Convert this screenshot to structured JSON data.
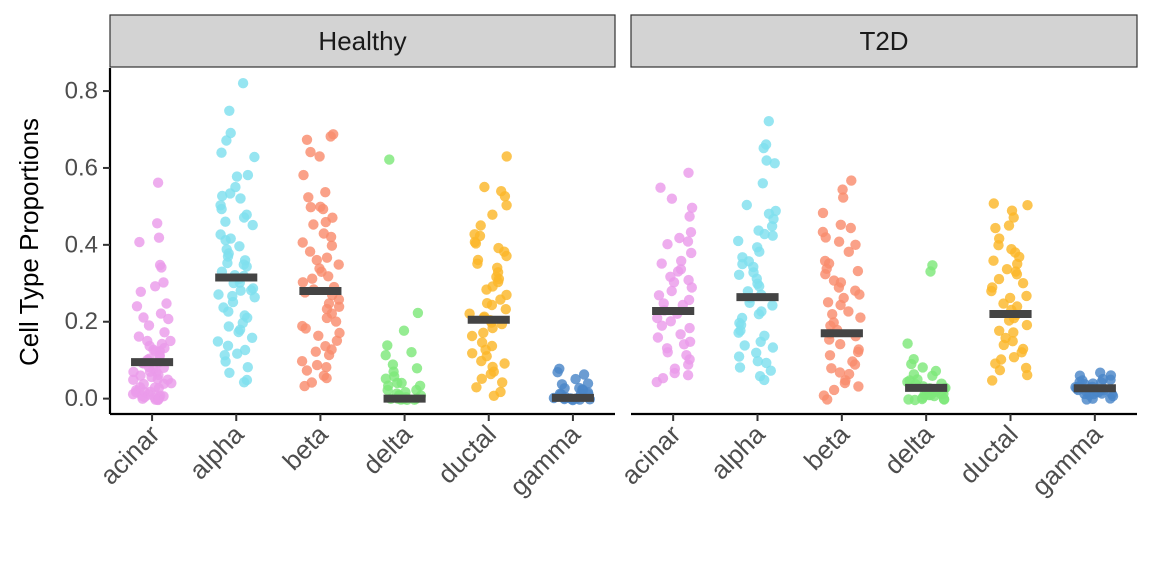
{
  "chart_data": {
    "type": "scatter",
    "subtype": "faceted jitter strip plot with median bars",
    "ylabel": "Cell Type Proportions",
    "xlabel": "",
    "ylim": [
      -0.04,
      0.86
    ],
    "yticks": [
      0.0,
      0.2,
      0.4,
      0.6,
      0.8
    ],
    "ytick_labels": [
      "0.0",
      "0.2",
      "0.4",
      "0.6",
      "0.8"
    ],
    "categories": [
      "acinar",
      "alpha",
      "beta",
      "delta",
      "ductal",
      "gamma"
    ],
    "colors": {
      "acinar": "#ea9bea",
      "alpha": "#7fdfee",
      "beta": "#f98c6e",
      "delta": "#7ee87a",
      "ductal": "#fbb72a",
      "gamma": "#4a86c8"
    },
    "median_color": "#444444",
    "grid": false,
    "legend": "none",
    "facets": [
      {
        "label": "Healthy",
        "groups": [
          {
            "category": "acinar",
            "median": 0.095,
            "points": [
              0.56,
              0.46,
              0.42,
              0.41,
              0.35,
              0.34,
              0.3,
              0.29,
              0.28,
              0.25,
              0.24,
              0.22,
              0.21,
              0.21,
              0.19,
              0.17,
              0.16,
              0.15,
              0.15,
              0.14,
              0.14,
              0.13,
              0.13,
              0.12,
              0.12,
              0.11,
              0.11,
              0.1,
              0.1,
              0.1,
              0.09,
              0.09,
              0.09,
              0.08,
              0.08,
              0.08,
              0.07,
              0.07,
              0.07,
              0.06,
              0.06,
              0.06,
              0.05,
              0.05,
              0.05,
              0.04,
              0.04,
              0.04,
              0.03,
              0.03,
              0.03,
              0.02,
              0.02,
              0.02,
              0.02,
              0.01,
              0.01,
              0.01,
              0.01,
              0.01,
              0.0,
              0.0,
              0.0,
              0.0,
              0.0,
              0.0,
              0.0,
              0.0
            ]
          },
          {
            "category": "alpha",
            "median": 0.315,
            "points": [
              0.82,
              0.75,
              0.69,
              0.67,
              0.64,
              0.63,
              0.58,
              0.58,
              0.55,
              0.53,
              0.53,
              0.52,
              0.5,
              0.49,
              0.48,
              0.47,
              0.46,
              0.45,
              0.43,
              0.42,
              0.41,
              0.4,
              0.39,
              0.38,
              0.37,
              0.36,
              0.35,
              0.35,
              0.34,
              0.33,
              0.32,
              0.32,
              0.31,
              0.3,
              0.3,
              0.29,
              0.28,
              0.28,
              0.27,
              0.27,
              0.26,
              0.25,
              0.24,
              0.23,
              0.22,
              0.21,
              0.2,
              0.19,
              0.18,
              0.17,
              0.16,
              0.15,
              0.14,
              0.13,
              0.12,
              0.11,
              0.1,
              0.08,
              0.07,
              0.05,
              0.04
            ]
          },
          {
            "category": "beta",
            "median": 0.28,
            "points": [
              0.69,
              0.68,
              0.67,
              0.64,
              0.63,
              0.58,
              0.54,
              0.52,
              0.5,
              0.5,
              0.49,
              0.47,
              0.46,
              0.45,
              0.43,
              0.42,
              0.41,
              0.4,
              0.38,
              0.37,
              0.36,
              0.35,
              0.34,
              0.33,
              0.32,
              0.31,
              0.3,
              0.29,
              0.28,
              0.28,
              0.27,
              0.26,
              0.25,
              0.24,
              0.23,
              0.22,
              0.21,
              0.2,
              0.19,
              0.18,
              0.17,
              0.16,
              0.15,
              0.14,
              0.13,
              0.12,
              0.11,
              0.1,
              0.09,
              0.08,
              0.07,
              0.06,
              0.05,
              0.04,
              0.03
            ]
          },
          {
            "category": "delta",
            "median": 0.0,
            "points": [
              0.62,
              0.22,
              0.18,
              0.14,
              0.12,
              0.11,
              0.09,
              0.08,
              0.07,
              0.06,
              0.05,
              0.04,
              0.04,
              0.03,
              0.03,
              0.02,
              0.02,
              0.02,
              0.01,
              0.01,
              0.01,
              0.01,
              0.0,
              0.0,
              0.0,
              0.0,
              0.0,
              0.0,
              0.0,
              0.0,
              0.0,
              0.0
            ]
          },
          {
            "category": "ductal",
            "median": 0.205,
            "points": [
              0.63,
              0.55,
              0.54,
              0.53,
              0.5,
              0.48,
              0.45,
              0.43,
              0.42,
              0.41,
              0.4,
              0.39,
              0.38,
              0.37,
              0.36,
              0.35,
              0.34,
              0.33,
              0.32,
              0.31,
              0.3,
              0.29,
              0.28,
              0.27,
              0.26,
              0.25,
              0.24,
              0.23,
              0.22,
              0.21,
              0.21,
              0.2,
              0.2,
              0.19,
              0.18,
              0.17,
              0.16,
              0.15,
              0.14,
              0.13,
              0.12,
              0.11,
              0.1,
              0.09,
              0.08,
              0.07,
              0.06,
              0.05,
              0.04,
              0.03,
              0.02,
              0.01
            ]
          },
          {
            "category": "gamma",
            "median": 0.002,
            "points": [
              0.08,
              0.07,
              0.06,
              0.05,
              0.04,
              0.04,
              0.03,
              0.03,
              0.02,
              0.02,
              0.02,
              0.01,
              0.01,
              0.01,
              0.01,
              0.0,
              0.0,
              0.0,
              0.0,
              0.0,
              0.0,
              0.0,
              0.0,
              0.0,
              0.0
            ]
          }
        ]
      },
      {
        "label": "T2D",
        "groups": [
          {
            "category": "acinar",
            "median": 0.228,
            "points": [
              0.59,
              0.55,
              0.52,
              0.5,
              0.47,
              0.43,
              0.42,
              0.41,
              0.4,
              0.38,
              0.36,
              0.35,
              0.34,
              0.33,
              0.32,
              0.31,
              0.3,
              0.29,
              0.28,
              0.27,
              0.26,
              0.25,
              0.24,
              0.23,
              0.22,
              0.21,
              0.2,
              0.19,
              0.18,
              0.17,
              0.16,
              0.15,
              0.14,
              0.13,
              0.12,
              0.11,
              0.1,
              0.09,
              0.08,
              0.07,
              0.06,
              0.05,
              0.04
            ]
          },
          {
            "category": "alpha",
            "median": 0.264,
            "points": [
              0.72,
              0.66,
              0.65,
              0.62,
              0.61,
              0.56,
              0.5,
              0.49,
              0.48,
              0.47,
              0.45,
              0.44,
              0.43,
              0.42,
              0.41,
              0.39,
              0.38,
              0.37,
              0.36,
              0.35,
              0.34,
              0.33,
              0.32,
              0.31,
              0.3,
              0.29,
              0.28,
              0.27,
              0.26,
              0.25,
              0.24,
              0.23,
              0.22,
              0.21,
              0.2,
              0.19,
              0.18,
              0.17,
              0.16,
              0.15,
              0.14,
              0.13,
              0.12,
              0.11,
              0.1,
              0.09,
              0.08,
              0.07,
              0.06,
              0.05
            ]
          },
          {
            "category": "beta",
            "median": 0.17,
            "points": [
              0.57,
              0.54,
              0.52,
              0.48,
              0.45,
              0.44,
              0.43,
              0.42,
              0.41,
              0.4,
              0.38,
              0.36,
              0.35,
              0.34,
              0.33,
              0.32,
              0.31,
              0.3,
              0.29,
              0.28,
              0.27,
              0.26,
              0.25,
              0.24,
              0.23,
              0.22,
              0.21,
              0.2,
              0.19,
              0.18,
              0.17,
              0.16,
              0.15,
              0.14,
              0.13,
              0.12,
              0.11,
              0.1,
              0.09,
              0.08,
              0.07,
              0.06,
              0.05,
              0.04,
              0.03,
              0.02,
              0.01,
              0.0
            ]
          },
          {
            "category": "delta",
            "median": 0.028,
            "points": [
              0.35,
              0.33,
              0.14,
              0.1,
              0.09,
              0.08,
              0.07,
              0.06,
              0.06,
              0.05,
              0.05,
              0.04,
              0.04,
              0.04,
              0.03,
              0.03,
              0.03,
              0.03,
              0.02,
              0.02,
              0.02,
              0.02,
              0.02,
              0.01,
              0.01,
              0.01,
              0.01,
              0.01,
              0.01,
              0.0,
              0.0,
              0.0,
              0.0,
              0.0,
              0.0
            ]
          },
          {
            "category": "ductal",
            "median": 0.22,
            "points": [
              0.51,
              0.5,
              0.49,
              0.47,
              0.45,
              0.44,
              0.42,
              0.4,
              0.39,
              0.38,
              0.37,
              0.36,
              0.35,
              0.34,
              0.33,
              0.32,
              0.31,
              0.3,
              0.29,
              0.28,
              0.27,
              0.26,
              0.25,
              0.24,
              0.23,
              0.22,
              0.21,
              0.2,
              0.19,
              0.18,
              0.17,
              0.16,
              0.15,
              0.14,
              0.13,
              0.12,
              0.11,
              0.1,
              0.09,
              0.08,
              0.07,
              0.06,
              0.05
            ]
          },
          {
            "category": "gamma",
            "median": 0.027,
            "points": [
              0.07,
              0.06,
              0.06,
              0.05,
              0.05,
              0.05,
              0.04,
              0.04,
              0.04,
              0.04,
              0.03,
              0.03,
              0.03,
              0.03,
              0.03,
              0.02,
              0.02,
              0.02,
              0.02,
              0.02,
              0.02,
              0.01,
              0.01,
              0.01,
              0.01,
              0.01,
              0.01,
              0.0,
              0.0,
              0.0
            ]
          }
        ]
      }
    ]
  }
}
